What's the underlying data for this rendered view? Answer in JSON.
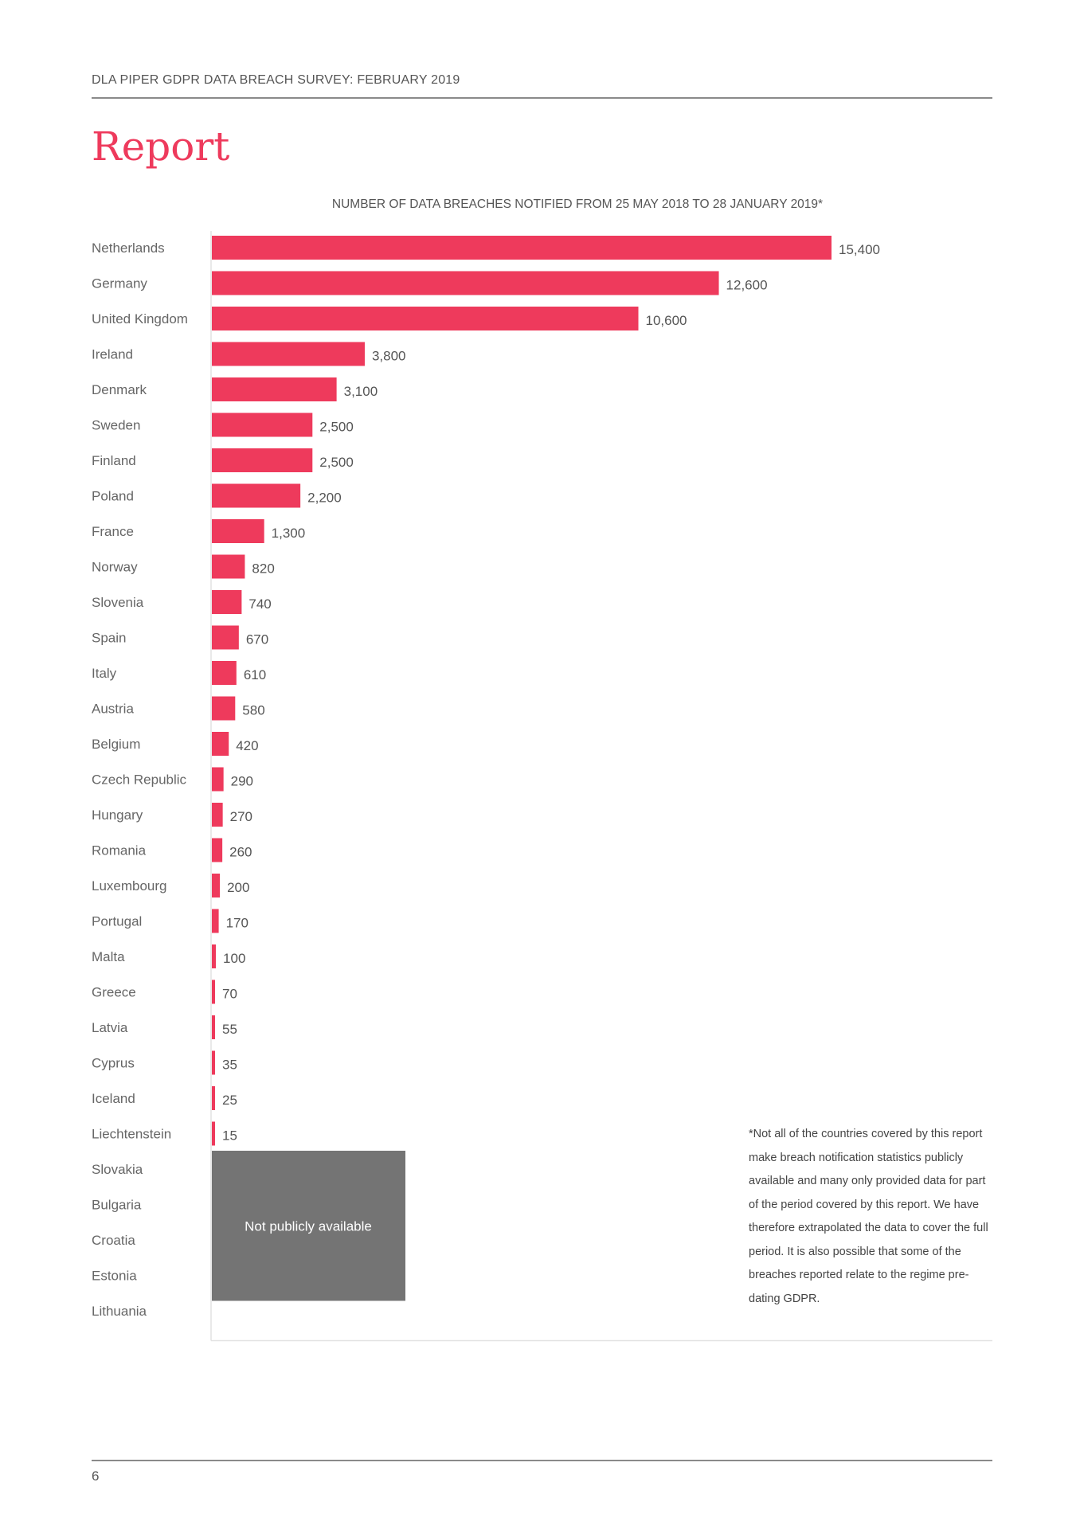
{
  "header": {
    "text": "DLA PIPER GDPR DATA BREACH SURVEY: FEBRUARY 2019"
  },
  "page_title": "Report",
  "chart_data": {
    "type": "bar",
    "orientation": "horizontal",
    "title": "NUMBER OF DATA BREACHES NOTIFIED FROM 25 MAY 2018 TO 28 JANUARY 2019*",
    "bar_color": "#ee3a5c",
    "categories": [
      "Netherlands",
      "Germany",
      "United Kingdom",
      "Ireland",
      "Denmark",
      "Sweden",
      "Finland",
      "Poland",
      "France",
      "Norway",
      "Slovenia",
      "Spain",
      "Italy",
      "Austria",
      "Belgium",
      "Czech Republic",
      "Hungary",
      "Romania",
      "Luxembourg",
      "Portugal",
      "Malta",
      "Greece",
      "Latvia",
      "Cyprus",
      "Iceland",
      "Liechtenstein"
    ],
    "values": [
      15400,
      12600,
      10600,
      3800,
      3100,
      2500,
      2500,
      2200,
      1300,
      820,
      740,
      670,
      610,
      580,
      420,
      290,
      270,
      260,
      200,
      170,
      100,
      70,
      55,
      35,
      25,
      15
    ],
    "value_labels": [
      "15,400",
      "12,600",
      "10,600",
      "3,800",
      "3,100",
      "2,500",
      "2,500",
      "2,200",
      "1,300",
      "820",
      "740",
      "670",
      "610",
      "580",
      "420",
      "290",
      "270",
      "260",
      "200",
      "170",
      "100",
      "70",
      "55",
      "35",
      "25",
      "15"
    ],
    "not_available": {
      "categories": [
        "Slovakia",
        "Bulgaria",
        "Croatia",
        "Estonia",
        "Lithuania"
      ],
      "label": "Not publicly available",
      "color": "#747474"
    }
  },
  "footnote": "*Not all of the countries covered by this report make breach notification statistics publicly available and many only provided data for part of the period covered by this report. We have therefore extrapolated the data to cover the full period. It is also possible that some of the breaches reported relate to the regime pre-dating GDPR.",
  "page_number": "6"
}
